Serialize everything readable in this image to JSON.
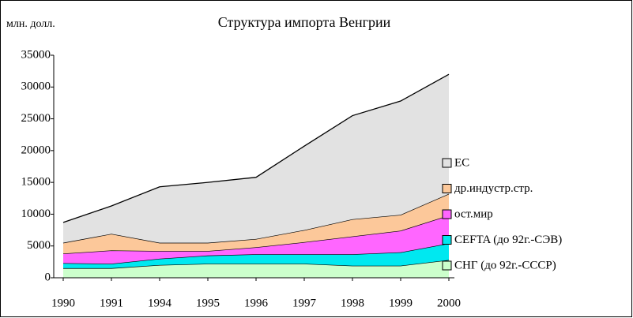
{
  "chart_data": {
    "type": "stacked_area",
    "title": "Структура импорта Венгрии",
    "y_axis_label": "млн. долл.",
    "categories": [
      "1990",
      "1991",
      "1994",
      "1995",
      "1996",
      "1997",
      "1998",
      "1999",
      "2000"
    ],
    "series": [
      {
        "name": "СНГ (до 92г.-СССР)",
        "color": "#ccffcc",
        "values": [
          1500,
          1500,
          2000,
          2200,
          2200,
          2200,
          1900,
          1900,
          2800
        ]
      },
      {
        "name": "CEFTA (до 92г.-СЭВ)",
        "color": "#00e8f0",
        "values": [
          800,
          700,
          1000,
          1300,
          1500,
          1500,
          1800,
          2100,
          2600
        ]
      },
      {
        "name": "ост.мир",
        "color": "#ff66ff",
        "values": [
          1500,
          2100,
          1200,
          700,
          1100,
          1900,
          2800,
          3400,
          4400
        ]
      },
      {
        "name": "др.индустр.стр.",
        "color": "#fcc89a",
        "values": [
          1700,
          2600,
          1300,
          1300,
          1300,
          1900,
          2700,
          2500,
          3400
        ]
      },
      {
        "name": "ЕС",
        "color": "#e2e2e2",
        "values": [
          3200,
          4400,
          8800,
          9500,
          9700,
          13200,
          16300,
          17900,
          18800
        ]
      }
    ],
    "ylim": [
      0,
      35000
    ],
    "yticks": [
      0,
      5000,
      10000,
      15000,
      20000,
      25000,
      30000,
      35000
    ],
    "legend": "right"
  }
}
